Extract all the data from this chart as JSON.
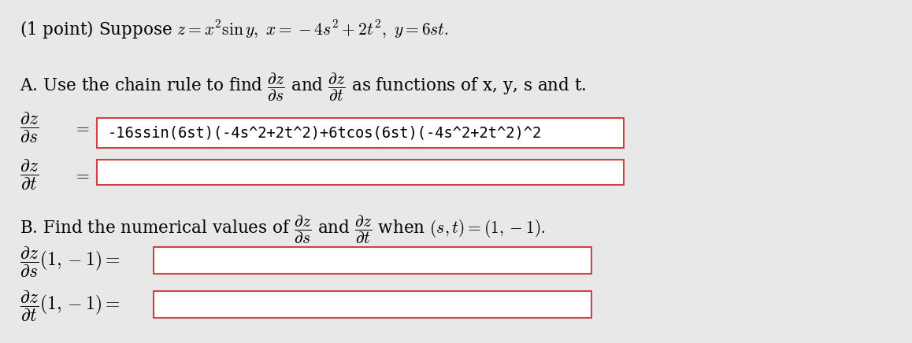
{
  "bg_color": "#e8e8e8",
  "box_fill": "#ffffff",
  "box_edge": "#cc4444",
  "line1": "(1 point) Suppose $z = x^2 \\sin y,\\ x = -4s^2 + 2t^2,\\ y = 6st.$",
  "line_A": "A. Use the chain rule to find $\\dfrac{\\partial z}{\\partial s}$ and $\\dfrac{\\partial z}{\\partial t}$ as functions of x, y, s and t.",
  "label_dzds": "$\\dfrac{\\partial z}{\\partial s}$",
  "label_dzdt": "$\\dfrac{\\partial z}{\\partial t}$",
  "equals": "$=$",
  "box1_content": "-16ssin(6st)(-4s^2+2t^2)+6tcos(6st)(-4s^2+2t^2)^2",
  "box2_content": "",
  "line_B": "B. Find the numerical values of $\\dfrac{\\partial z}{\\partial s}$ and $\\dfrac{\\partial z}{\\partial t}$ when $(s, t) = (1, -1).$",
  "label_dzds_B": "$\\dfrac{\\partial z}{\\partial s}(1, -1) =$",
  "label_dzdt_B": "$\\dfrac{\\partial z}{\\partial t}(1, -1) =$",
  "box3_content": "",
  "box4_content": "",
  "font_size_main": 15.5,
  "font_size_box": 13.5,
  "font_size_label": 17
}
